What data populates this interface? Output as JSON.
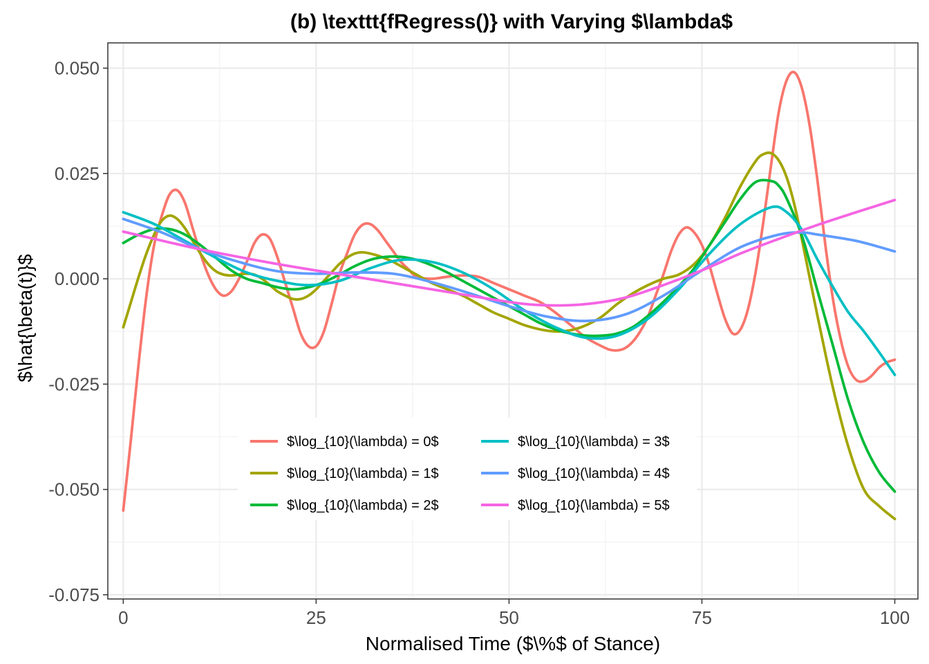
{
  "chart_data": {
    "type": "line",
    "title": "(b) \\texttt{fRegress()} with Varying $\\lambda$",
    "xlabel": "Normalised Time ($\\%$ of Stance)",
    "ylabel": "$\\hat{\\beta(t)}$",
    "xlim": [
      -2,
      103
    ],
    "ylim": [
      -0.076,
      0.056
    ],
    "xticks": [
      0,
      25,
      50,
      75,
      100
    ],
    "xtick_labels": [
      "0",
      "25",
      "50",
      "75",
      "100"
    ],
    "yticks": [
      0.05,
      0.025,
      0,
      -0.025,
      -0.05,
      -0.075
    ],
    "ytick_labels": [
      "0.050",
      "0.025",
      "0.000",
      "-0.025",
      "-0.050",
      "-0.075"
    ],
    "grid": true,
    "legend_position": "bottom-center-inside",
    "series": [
      {
        "name": "$\\log_{10}(\\lambda) = 0$",
        "color": "#F8766D",
        "points": [
          [
            0,
            -0.055
          ],
          [
            1,
            -0.038
          ],
          [
            2,
            -0.02
          ],
          [
            3,
            -0.004
          ],
          [
            4,
            0.008
          ],
          [
            5,
            0.015
          ],
          [
            6,
            0.02
          ],
          [
            7,
            0.021
          ],
          [
            8,
            0.018
          ],
          [
            9,
            0.012
          ],
          [
            10,
            0.006
          ],
          [
            11,
            0.001
          ],
          [
            12,
            -0.0025
          ],
          [
            13,
            -0.004
          ],
          [
            14,
            -0.003
          ],
          [
            15,
            0
          ],
          [
            16,
            0.004
          ],
          [
            17,
            0.0085
          ],
          [
            18,
            0.0105
          ],
          [
            19,
            0.0095
          ],
          [
            20,
            0.005
          ],
          [
            21,
            -0.001
          ],
          [
            22,
            -0.007
          ],
          [
            23,
            -0.013
          ],
          [
            24,
            -0.016
          ],
          [
            25,
            -0.016
          ],
          [
            26,
            -0.0125
          ],
          [
            27,
            -0.006
          ],
          [
            28,
            0.001
          ],
          [
            29,
            0.006
          ],
          [
            30,
            0.0105
          ],
          [
            31,
            0.0128
          ],
          [
            32,
            0.013
          ],
          [
            33,
            0.0115
          ],
          [
            34,
            0.009
          ],
          [
            35,
            0.0065
          ],
          [
            36,
            0.004
          ],
          [
            37,
            0.0022
          ],
          [
            38,
            0.0005
          ],
          [
            40,
            0
          ],
          [
            42,
            0.0005
          ],
          [
            44,
            0.0008
          ],
          [
            46,
            0.0005
          ],
          [
            48,
            -0.001
          ],
          [
            50,
            -0.0025
          ],
          [
            52,
            -0.004
          ],
          [
            54,
            -0.0055
          ],
          [
            56,
            -0.008
          ],
          [
            58,
            -0.011
          ],
          [
            60,
            -0.014
          ],
          [
            62,
            -0.016
          ],
          [
            63,
            -0.0168
          ],
          [
            64,
            -0.017
          ],
          [
            65,
            -0.0165
          ],
          [
            66,
            -0.015
          ],
          [
            67,
            -0.0125
          ],
          [
            68,
            -0.009
          ],
          [
            69,
            -0.004
          ],
          [
            70,
            0.001
          ],
          [
            71,
            0.0065
          ],
          [
            72,
            0.0105
          ],
          [
            73,
            0.0122
          ],
          [
            74,
            0.011
          ],
          [
            75,
            0.008
          ],
          [
            76,
            0.003
          ],
          [
            77,
            -0.0035
          ],
          [
            78,
            -0.0095
          ],
          [
            79,
            -0.013
          ],
          [
            80,
            -0.012
          ],
          [
            81,
            -0.007
          ],
          [
            82,
            0.002
          ],
          [
            83,
            0.014
          ],
          [
            84,
            0.0275
          ],
          [
            85,
            0.04
          ],
          [
            86,
            0.0472
          ],
          [
            87,
            0.049
          ],
          [
            88,
            0.045
          ],
          [
            89,
            0.036
          ],
          [
            90,
            0.023
          ],
          [
            91,
            0.008
          ],
          [
            92,
            -0.005
          ],
          [
            93,
            -0.0145
          ],
          [
            94,
            -0.021
          ],
          [
            95,
            -0.024
          ],
          [
            96,
            -0.0243
          ],
          [
            97,
            -0.023
          ],
          [
            98,
            -0.021
          ],
          [
            99,
            -0.0198
          ],
          [
            100,
            -0.0192
          ]
        ]
      },
      {
        "name": "$\\log_{10}(\\lambda) = 1$",
        "color": "#A3A500",
        "points": [
          [
            0,
            -0.0115
          ],
          [
            1,
            -0.0055
          ],
          [
            2,
            0.0005
          ],
          [
            3,
            0.006
          ],
          [
            4,
            0.0105
          ],
          [
            5,
            0.0138
          ],
          [
            6,
            0.015
          ],
          [
            7,
            0.0142
          ],
          [
            8,
            0.012
          ],
          [
            9,
            0.009
          ],
          [
            10,
            0.006
          ],
          [
            11,
            0.0035
          ],
          [
            12,
            0.0018
          ],
          [
            13,
            0.001
          ],
          [
            14,
            0.0008
          ],
          [
            15,
            0.001
          ],
          [
            16,
            0.0012
          ],
          [
            17,
            0.001
          ],
          [
            18,
            0
          ],
          [
            19,
            -0.0015
          ],
          [
            20,
            -0.003
          ],
          [
            21,
            -0.004
          ],
          [
            22,
            -0.0048
          ],
          [
            23,
            -0.0048
          ],
          [
            24,
            -0.004
          ],
          [
            25,
            -0.0025
          ],
          [
            26,
            -0.0005
          ],
          [
            27,
            0.0015
          ],
          [
            28,
            0.0035
          ],
          [
            29,
            0.005
          ],
          [
            30,
            0.006
          ],
          [
            31,
            0.0063
          ],
          [
            32,
            0.006
          ],
          [
            33,
            0.0055
          ],
          [
            34,
            0.0048
          ],
          [
            35,
            0.004
          ],
          [
            36,
            0.003
          ],
          [
            37,
            0.002
          ],
          [
            38,
            0.001
          ],
          [
            40,
            -0.001
          ],
          [
            42,
            -0.0025
          ],
          [
            44,
            -0.004
          ],
          [
            46,
            -0.006
          ],
          [
            48,
            -0.008
          ],
          [
            50,
            -0.0095
          ],
          [
            52,
            -0.011
          ],
          [
            54,
            -0.012
          ],
          [
            56,
            -0.0125
          ],
          [
            58,
            -0.0122
          ],
          [
            60,
            -0.011
          ],
          [
            62,
            -0.009
          ],
          [
            64,
            -0.006
          ],
          [
            66,
            -0.0035
          ],
          [
            68,
            -0.0015
          ],
          [
            70,
            0
          ],
          [
            72,
            0.001
          ],
          [
            74,
            0.0035
          ],
          [
            76,
            0.008
          ],
          [
            78,
            0.0145
          ],
          [
            80,
            0.022
          ],
          [
            82,
            0.028
          ],
          [
            83,
            0.0296
          ],
          [
            84,
            0.0298
          ],
          [
            85,
            0.028
          ],
          [
            86,
            0.024
          ],
          [
            87,
            0.0175
          ],
          [
            88,
            0.009
          ],
          [
            90,
            -0.009
          ],
          [
            92,
            -0.026
          ],
          [
            94,
            -0.04
          ],
          [
            96,
            -0.05
          ],
          [
            98,
            -0.054
          ],
          [
            100,
            -0.057
          ]
        ]
      },
      {
        "name": "$\\log_{10}(\\lambda) = 2$",
        "color": "#00BA38",
        "points": [
          [
            0,
            0.0085
          ],
          [
            2,
            0.0105
          ],
          [
            4,
            0.0118
          ],
          [
            6,
            0.0118
          ],
          [
            8,
            0.0105
          ],
          [
            10,
            0.008
          ],
          [
            12,
            0.005
          ],
          [
            14,
            0.002
          ],
          [
            16,
            0
          ],
          [
            18,
            -0.001
          ],
          [
            20,
            -0.002
          ],
          [
            22,
            -0.0025
          ],
          [
            24,
            -0.002
          ],
          [
            26,
            -0.0008
          ],
          [
            28,
            0.001
          ],
          [
            30,
            0.003
          ],
          [
            32,
            0.0045
          ],
          [
            34,
            0.0052
          ],
          [
            36,
            0.0052
          ],
          [
            38,
            0.0045
          ],
          [
            40,
            0.0032
          ],
          [
            42,
            0.0015
          ],
          [
            44,
            -0.0005
          ],
          [
            46,
            -0.0025
          ],
          [
            48,
            -0.0045
          ],
          [
            50,
            -0.0065
          ],
          [
            52,
            -0.0085
          ],
          [
            54,
            -0.0105
          ],
          [
            56,
            -0.012
          ],
          [
            58,
            -0.013
          ],
          [
            60,
            -0.0135
          ],
          [
            62,
            -0.0135
          ],
          [
            64,
            -0.013
          ],
          [
            66,
            -0.0115
          ],
          [
            68,
            -0.0088
          ],
          [
            70,
            -0.0055
          ],
          [
            72,
            -0.0018
          ],
          [
            74,
            0.0025
          ],
          [
            76,
            0.008
          ],
          [
            78,
            0.0135
          ],
          [
            80,
            0.019
          ],
          [
            82,
            0.023
          ],
          [
            84,
            0.0232
          ],
          [
            85,
            0.022
          ],
          [
            86,
            0.019
          ],
          [
            88,
            0.01
          ],
          [
            90,
            -0.003
          ],
          [
            92,
            -0.016
          ],
          [
            94,
            -0.029
          ],
          [
            96,
            -0.039
          ],
          [
            98,
            -0.046
          ],
          [
            100,
            -0.0505
          ]
        ]
      },
      {
        "name": "$\\log_{10}(\\lambda) = 3$",
        "color": "#00BFC4",
        "points": [
          [
            0,
            0.0158
          ],
          [
            4,
            0.013
          ],
          [
            8,
            0.009
          ],
          [
            12,
            0.005
          ],
          [
            16,
            0.0015
          ],
          [
            20,
            -0.0005
          ],
          [
            24,
            -0.0015
          ],
          [
            28,
            -0.0005
          ],
          [
            32,
            0.0025
          ],
          [
            36,
            0.0045
          ],
          [
            40,
            0.004
          ],
          [
            44,
            0.0015
          ],
          [
            48,
            -0.0025
          ],
          [
            52,
            -0.0075
          ],
          [
            56,
            -0.0115
          ],
          [
            60,
            -0.014
          ],
          [
            64,
            -0.0135
          ],
          [
            68,
            -0.0095
          ],
          [
            72,
            -0.0025
          ],
          [
            76,
            0.006
          ],
          [
            80,
            0.013
          ],
          [
            84,
            0.017
          ],
          [
            86,
            0.0158
          ],
          [
            88,
            0.0115
          ],
          [
            90,
            0.0045
          ],
          [
            92,
            -0.002
          ],
          [
            94,
            -0.008
          ],
          [
            96,
            -0.0125
          ],
          [
            98,
            -0.0175
          ],
          [
            100,
            -0.0228
          ]
        ]
      },
      {
        "name": "$\\log_{10}(\\lambda) = 4$",
        "color": "#619CFF",
        "points": [
          [
            0,
            0.0142
          ],
          [
            5,
            0.011
          ],
          [
            10,
            0.007
          ],
          [
            15,
            0.004
          ],
          [
            20,
            0.0018
          ],
          [
            25,
            0.0012
          ],
          [
            30,
            0.0015
          ],
          [
            35,
            0.0012
          ],
          [
            40,
            -0.0008
          ],
          [
            45,
            -0.0035
          ],
          [
            50,
            -0.0065
          ],
          [
            55,
            -0.009
          ],
          [
            60,
            -0.01
          ],
          [
            65,
            -0.0085
          ],
          [
            70,
            -0.004
          ],
          [
            75,
            0.002
          ],
          [
            80,
            0.0075
          ],
          [
            85,
            0.0105
          ],
          [
            88,
            0.011
          ],
          [
            90,
            0.0105
          ],
          [
            95,
            0.009
          ],
          [
            100,
            0.0065
          ]
        ]
      },
      {
        "name": "$\\log_{10}(\\lambda) = 5$",
        "color": "#F564E3",
        "points": [
          [
            0,
            0.0112
          ],
          [
            10,
            0.007
          ],
          [
            20,
            0.0035
          ],
          [
            30,
            0.0005
          ],
          [
            40,
            -0.0025
          ],
          [
            50,
            -0.0055
          ],
          [
            55,
            -0.0063
          ],
          [
            60,
            -0.006
          ],
          [
            65,
            -0.0045
          ],
          [
            70,
            -0.0015
          ],
          [
            75,
            0.002
          ],
          [
            80,
            0.006
          ],
          [
            85,
            0.0095
          ],
          [
            90,
            0.0128
          ],
          [
            95,
            0.0158
          ],
          [
            100,
            0.0187
          ]
        ]
      }
    ]
  }
}
